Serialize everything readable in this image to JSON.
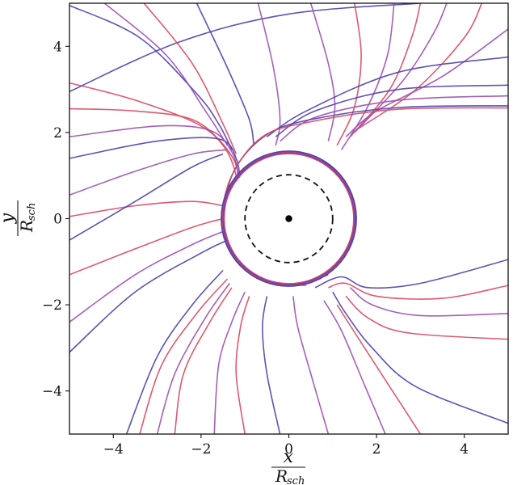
{
  "chart_data": {
    "type": "line",
    "title": "",
    "xlabel": {
      "numerator": "x",
      "denominator": "R",
      "subscript": "sch"
    },
    "ylabel": {
      "numerator": "y",
      "denominator": "R",
      "subscript": "sch"
    },
    "xlim": [
      -5,
      5
    ],
    "ylim": [
      -5,
      5
    ],
    "xticks": [
      -4,
      -2,
      0,
      2,
      4
    ],
    "yticks": [
      -4,
      -2,
      0,
      2,
      4
    ],
    "xtick_labels": [
      "−4",
      "−2",
      "0",
      "2",
      "4"
    ],
    "ytick_labels": [
      "−4",
      "−2",
      "0",
      "2",
      "4"
    ],
    "grid": false,
    "legend": "none",
    "colors": {
      "red": "#d9475f",
      "purple": "#9b4fb0",
      "blue": "#4b3fb0"
    },
    "photon_sphere_radius": 1.5,
    "event_horizon_radius": 1.0,
    "singularity": [
      0,
      0
    ],
    "series": [
      {
        "color": "red",
        "values": [
          [
            -5.0,
            3.15
          ],
          [
            -3.5,
            2.75
          ],
          [
            -2.0,
            2.15
          ],
          [
            -1.3,
            1.45
          ],
          [
            -1.15,
            0.8
          ],
          [
            -1.3,
            0.2
          ],
          [
            -1.4,
            -0.4
          ]
        ]
      },
      {
        "color": "red",
        "values": [
          [
            -5.0,
            2.55
          ],
          [
            -3.5,
            2.5
          ],
          [
            -2.2,
            2.3
          ],
          [
            -1.5,
            1.7
          ],
          [
            -1.2,
            1.0
          ],
          [
            -1.15,
            0.3
          ],
          [
            -1.3,
            -0.3
          ]
        ]
      },
      {
        "color": "purple",
        "values": [
          [
            -5.0,
            1.9
          ],
          [
            -3.0,
            2.15
          ],
          [
            -1.8,
            2.05
          ],
          [
            -1.3,
            1.55
          ],
          [
            -1.15,
            0.9
          ],
          [
            -1.2,
            0.2
          ]
        ]
      },
      {
        "color": "blue",
        "values": [
          [
            -5.0,
            1.4
          ],
          [
            -3.0,
            1.8
          ],
          [
            -1.6,
            1.85
          ],
          [
            -1.2,
            1.4
          ],
          [
            -1.12,
            0.7
          ],
          [
            -1.25,
            0.0
          ]
        ]
      },
      {
        "color": "blue",
        "values": [
          [
            -5.0,
            2.95
          ],
          [
            -2.5,
            4.1
          ],
          [
            0.0,
            4.75
          ],
          [
            3.0,
            5.0
          ]
        ]
      },
      {
        "color": "blue",
        "values": [
          [
            -5.0,
            4.95
          ],
          [
            -3.4,
            4.2
          ],
          [
            -2.1,
            2.9
          ],
          [
            -1.6,
            2.2
          ],
          [
            -1.3,
            1.6
          ]
        ]
      },
      {
        "color": "purple",
        "values": [
          [
            -4.2,
            5.0
          ],
          [
            -2.8,
            3.8
          ],
          [
            -1.9,
            2.5
          ],
          [
            -1.4,
            1.7
          ]
        ]
      },
      {
        "color": "red",
        "values": [
          [
            -3.3,
            5.0
          ],
          [
            -2.2,
            3.6
          ],
          [
            -1.5,
            2.2
          ],
          [
            -1.2,
            1.5
          ]
        ]
      },
      {
        "color": "blue",
        "values": [
          [
            -2.1,
            5.0
          ],
          [
            -1.4,
            3.5
          ],
          [
            -0.9,
            2.3
          ],
          [
            -0.8,
            1.7
          ]
        ]
      },
      {
        "color": "purple",
        "values": [
          [
            -0.7,
            5.0
          ],
          [
            -0.35,
            3.5
          ],
          [
            -0.2,
            2.3
          ],
          [
            -0.3,
            1.7
          ]
        ]
      },
      {
        "color": "purple",
        "values": [
          [
            0.5,
            5.0
          ],
          [
            0.9,
            3.6
          ],
          [
            1.05,
            2.6
          ],
          [
            0.9,
            1.8
          ]
        ]
      },
      {
        "color": "red",
        "values": [
          [
            1.5,
            5.0
          ],
          [
            1.65,
            3.8
          ],
          [
            1.5,
            2.6
          ],
          [
            1.1,
            1.7
          ]
        ]
      },
      {
        "color": "purple",
        "values": [
          [
            2.4,
            5.0
          ],
          [
            2.25,
            3.8
          ],
          [
            1.8,
            2.6
          ],
          [
            1.2,
            1.6
          ]
        ]
      },
      {
        "color": "red",
        "values": [
          [
            3.0,
            5.0
          ],
          [
            2.8,
            4.2
          ],
          [
            2.3,
            3.0
          ],
          [
            1.4,
            1.9
          ]
        ]
      },
      {
        "color": "purple",
        "values": [
          [
            3.6,
            5.0
          ],
          [
            3.3,
            4.3
          ],
          [
            2.6,
            3.2
          ],
          [
            1.5,
            2.0
          ]
        ]
      },
      {
        "color": "red",
        "values": [
          [
            4.4,
            5.0
          ],
          [
            4.0,
            4.2
          ],
          [
            2.9,
            3.0
          ],
          [
            1.6,
            2.1
          ]
        ]
      },
      {
        "color": "purple",
        "values": [
          [
            5.0,
            4.4
          ],
          [
            3.5,
            3.3
          ],
          [
            2.0,
            2.5
          ],
          [
            1.3,
            1.9
          ]
        ]
      },
      {
        "color": "blue",
        "values": [
          [
            5.0,
            3.75
          ],
          [
            2.5,
            3.4
          ],
          [
            0.4,
            2.5
          ],
          [
            -0.5,
            1.9
          ]
        ]
      },
      {
        "color": "blue",
        "values": [
          [
            5.0,
            3.1
          ],
          [
            2.5,
            3.0
          ],
          [
            0.6,
            2.5
          ],
          [
            -0.3,
            1.9
          ]
        ]
      },
      {
        "color": "purple",
        "values": [
          [
            5.0,
            2.85
          ],
          [
            2.5,
            2.75
          ],
          [
            0.6,
            2.35
          ],
          [
            -0.2,
            1.8
          ]
        ]
      },
      {
        "color": "blue",
        "values": [
          [
            5.0,
            2.62
          ],
          [
            2.5,
            2.58
          ],
          [
            0.5,
            2.3
          ],
          [
            -0.5,
            1.95
          ],
          [
            -1.2,
            1.2
          ],
          [
            -1.45,
            0.3
          ],
          [
            -1.35,
            -0.6
          ],
          [
            -0.8,
            -1.3
          ],
          [
            0.1,
            -1.55
          ],
          [
            0.9,
            -1.3
          ]
        ]
      },
      {
        "color": "red",
        "values": [
          [
            5.0,
            2.57
          ],
          [
            2.5,
            2.54
          ],
          [
            0.5,
            2.25
          ],
          [
            -0.6,
            1.9
          ],
          [
            -1.3,
            1.0
          ],
          [
            -1.5,
            0.0
          ],
          [
            -1.2,
            -0.9
          ],
          [
            -0.5,
            -1.45
          ],
          [
            0.4,
            -1.55
          ]
        ]
      },
      {
        "color": "blue",
        "values": [
          [
            5.0,
            -0.95
          ],
          [
            3.0,
            -1.5
          ],
          [
            1.8,
            -1.6
          ],
          [
            1.2,
            -1.35
          ],
          [
            0.6,
            -1.6
          ]
        ]
      },
      {
        "color": "red",
        "values": [
          [
            5.0,
            -1.55
          ],
          [
            3.5,
            -1.85
          ],
          [
            2.0,
            -1.8
          ],
          [
            1.3,
            -1.5
          ],
          [
            0.9,
            -1.6
          ]
        ]
      },
      {
        "color": "purple",
        "values": [
          [
            5.0,
            -2.2
          ],
          [
            3.0,
            -2.25
          ],
          [
            1.9,
            -2.0
          ],
          [
            1.4,
            -1.6
          ]
        ]
      },
      {
        "color": "red",
        "values": [
          [
            5.0,
            -2.8
          ],
          [
            2.7,
            -2.65
          ],
          [
            1.8,
            -2.3
          ],
          [
            1.3,
            -1.8
          ]
        ]
      },
      {
        "color": "blue",
        "values": [
          [
            5.0,
            -4.75
          ],
          [
            2.9,
            -3.9
          ],
          [
            1.9,
            -3.0
          ],
          [
            1.3,
            -2.2
          ],
          [
            1.0,
            -1.7
          ]
        ]
      },
      {
        "color": "red",
        "values": [
          [
            3.0,
            -5.0
          ],
          [
            2.3,
            -3.9
          ],
          [
            1.6,
            -2.8
          ],
          [
            1.1,
            -2.0
          ]
        ]
      },
      {
        "color": "purple",
        "values": [
          [
            2.2,
            -5.0
          ],
          [
            1.7,
            -3.8
          ],
          [
            1.2,
            -2.6
          ],
          [
            0.8,
            -1.9
          ]
        ]
      },
      {
        "color": "purple",
        "values": [
          [
            0.9,
            -5.0
          ],
          [
            0.5,
            -3.6
          ],
          [
            0.2,
            -2.5
          ],
          [
            0.1,
            -1.8
          ]
        ]
      },
      {
        "color": "blue",
        "values": [
          [
            -0.2,
            -5.0
          ],
          [
            -0.5,
            -3.6
          ],
          [
            -0.6,
            -2.5
          ],
          [
            -0.5,
            -1.8
          ]
        ]
      },
      {
        "color": "red",
        "values": [
          [
            -1.0,
            -5.0
          ],
          [
            -1.2,
            -3.6
          ],
          [
            -1.1,
            -2.5
          ],
          [
            -0.9,
            -1.8
          ]
        ]
      },
      {
        "color": "purple",
        "values": [
          [
            -1.7,
            -5.0
          ],
          [
            -1.6,
            -3.4
          ],
          [
            -1.3,
            -2.4
          ],
          [
            -1.0,
            -1.7
          ]
        ]
      },
      {
        "color": "red",
        "values": [
          [
            -2.6,
            -5.0
          ],
          [
            -2.4,
            -3.6
          ],
          [
            -1.8,
            -2.4
          ],
          [
            -1.3,
            -1.6
          ]
        ]
      },
      {
        "color": "purple",
        "values": [
          [
            -3.0,
            -5.0
          ],
          [
            -2.6,
            -3.6
          ],
          [
            -1.9,
            -2.3
          ],
          [
            -1.35,
            -1.5
          ]
        ]
      },
      {
        "color": "red",
        "values": [
          [
            -3.4,
            -5.0
          ],
          [
            -2.9,
            -3.4
          ],
          [
            -2.1,
            -2.2
          ],
          [
            -1.4,
            -1.4
          ]
        ]
      },
      {
        "color": "blue",
        "values": [
          [
            -3.7,
            -5.0
          ],
          [
            -3.0,
            -3.2
          ],
          [
            -2.2,
            -2.0
          ],
          [
            -1.5,
            -1.2
          ]
        ]
      },
      {
        "color": "blue",
        "values": [
          [
            -5.0,
            -3.1
          ],
          [
            -3.5,
            -1.7
          ],
          [
            -2.0,
            -0.8
          ],
          [
            -1.4,
            -0.5
          ]
        ]
      },
      {
        "color": "purple",
        "values": [
          [
            -5.0,
            -2.4
          ],
          [
            -3.5,
            -1.3
          ],
          [
            -2.2,
            -0.6
          ],
          [
            -1.5,
            -0.3
          ]
        ]
      },
      {
        "color": "red",
        "values": [
          [
            -5.0,
            -1.3
          ],
          [
            -3.5,
            -0.7
          ],
          [
            -2.2,
            -0.2
          ],
          [
            -1.5,
            0.0
          ]
        ]
      },
      {
        "color": "red",
        "values": [
          [
            -5.0,
            0.05
          ],
          [
            -3.5,
            0.3
          ],
          [
            -2.2,
            0.4
          ],
          [
            -1.5,
            0.3
          ]
        ]
      },
      {
        "color": "blue",
        "values": [
          [
            -5.0,
            -0.5
          ],
          [
            -3.5,
            0.4
          ],
          [
            -2.2,
            1.2
          ],
          [
            -1.5,
            1.5
          ]
        ]
      },
      {
        "color": "purple",
        "values": [
          [
            -5.0,
            0.55
          ],
          [
            -3.5,
            1.1
          ],
          [
            -2.2,
            1.5
          ],
          [
            -1.4,
            1.6
          ]
        ]
      }
    ]
  }
}
